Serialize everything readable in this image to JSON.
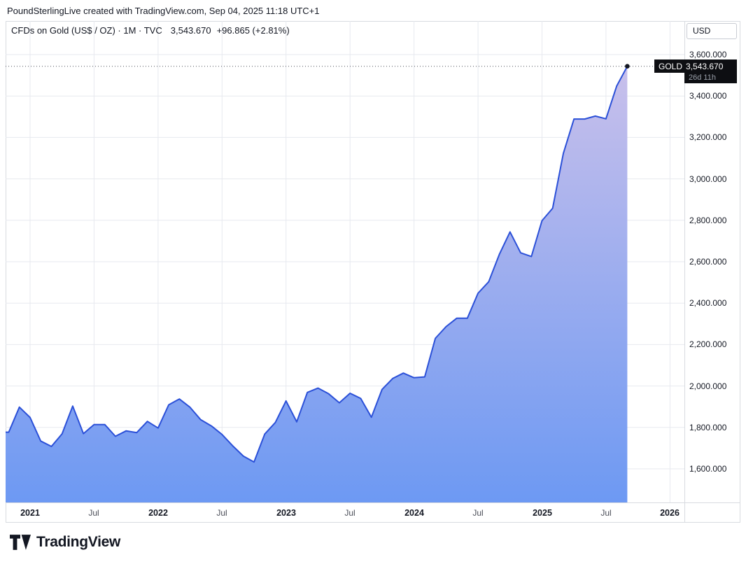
{
  "header": {
    "attribution": "PoundSterlingLive created with TradingView.com, Sep 04, 2025 11:18 UTC+1"
  },
  "legend": {
    "symbol_title": "CFDs on Gold (US$ / OZ) · 1M · TVC",
    "last_price": "3,543.670",
    "change": "+96.865 (+2.81%)"
  },
  "price_scale": {
    "currency_button": "USD",
    "ticks": [
      {
        "label": "3,600.000",
        "value": 3600
      },
      {
        "label": "3,400.000",
        "value": 3400
      },
      {
        "label": "3,200.000",
        "value": 3200
      },
      {
        "label": "3,000.000",
        "value": 3000
      },
      {
        "label": "2,800.000",
        "value": 2800
      },
      {
        "label": "2,600.000",
        "value": 2600
      },
      {
        "label": "2,400.000",
        "value": 2400
      },
      {
        "label": "2,200.000",
        "value": 2200
      },
      {
        "label": "2,000.000",
        "value": 2000
      },
      {
        "label": "1,800.000",
        "value": 1800
      },
      {
        "label": "1,600.000",
        "value": 1600
      }
    ]
  },
  "price_label": {
    "symbol": "GOLD",
    "price": "3,543.670",
    "countdown": "26d 11h"
  },
  "footer": {
    "brand": "TradingView"
  },
  "colors": {
    "line": "#2b50d8",
    "area_top": "#d2c4ea",
    "area_bottom": "#6d99f3",
    "grid": "#e7e9ef",
    "frame": "#d8dbe0",
    "label_bg": "#0d0e12",
    "dotted_line": "#50535e",
    "end_dot": "#131722"
  },
  "chart_data": {
    "type": "area",
    "title": "CFDs on Gold (US$ / OZ) · 1M · TVC",
    "series_name": "GOLD",
    "unit": "USD",
    "frequency": "monthly",
    "x_range": [
      "2020-11",
      "2025-09"
    ],
    "ylim": [
      1438,
      3762
    ],
    "grid": true,
    "last_value": 3543.67,
    "dates": [
      "2020-11",
      "2020-12",
      "2021-01",
      "2021-02",
      "2021-03",
      "2021-04",
      "2021-05",
      "2021-06",
      "2021-07",
      "2021-08",
      "2021-09",
      "2021-10",
      "2021-11",
      "2021-12",
      "2022-01",
      "2022-02",
      "2022-03",
      "2022-04",
      "2022-05",
      "2022-06",
      "2022-07",
      "2022-08",
      "2022-09",
      "2022-10",
      "2022-11",
      "2022-12",
      "2023-01",
      "2023-02",
      "2023-03",
      "2023-04",
      "2023-05",
      "2023-06",
      "2023-07",
      "2023-08",
      "2023-09",
      "2023-10",
      "2023-11",
      "2023-12",
      "2024-01",
      "2024-02",
      "2024-03",
      "2024-04",
      "2024-05",
      "2024-06",
      "2024-07",
      "2024-08",
      "2024-09",
      "2024-10",
      "2024-11",
      "2024-12",
      "2025-01",
      "2025-02",
      "2025-03",
      "2025-04",
      "2025-05",
      "2025-06",
      "2025-07",
      "2025-08",
      "2025-09"
    ],
    "values": [
      1777,
      1898,
      1848,
      1734,
      1708,
      1769,
      1903,
      1770,
      1814,
      1814,
      1757,
      1783,
      1775,
      1829,
      1797,
      1909,
      1937,
      1897,
      1837,
      1807,
      1766,
      1711,
      1661,
      1633,
      1768,
      1824,
      1928,
      1827,
      1969,
      1990,
      1962,
      1919,
      1965,
      1940,
      1849,
      1983,
      2036,
      2062,
      2040,
      2044,
      2230,
      2286,
      2327,
      2327,
      2448,
      2503,
      2635,
      2744,
      2643,
      2625,
      2798,
      2858,
      3123,
      3289,
      3289,
      3303,
      3290,
      3448,
      3543.67
    ],
    "y_gridlines": [
      1600,
      1800,
      2000,
      2200,
      2400,
      2600,
      2800,
      3000,
      3200,
      3400,
      3600
    ],
    "x_ticks": [
      {
        "label": "2021",
        "month_index": 2,
        "major": true
      },
      {
        "label": "Jul",
        "month_index": 8,
        "major": false
      },
      {
        "label": "2022",
        "month_index": 14,
        "major": true
      },
      {
        "label": "Jul",
        "month_index": 20,
        "major": false
      },
      {
        "label": "2023",
        "month_index": 26,
        "major": true
      },
      {
        "label": "Jul",
        "month_index": 32,
        "major": false
      },
      {
        "label": "2024",
        "month_index": 38,
        "major": true
      },
      {
        "label": "Jul",
        "month_index": 44,
        "major": false
      },
      {
        "label": "2025",
        "month_index": 50,
        "major": true
      },
      {
        "label": "Jul",
        "month_index": 56,
        "major": false
      },
      {
        "label": "2026",
        "month_index": 62,
        "major": true
      }
    ]
  }
}
